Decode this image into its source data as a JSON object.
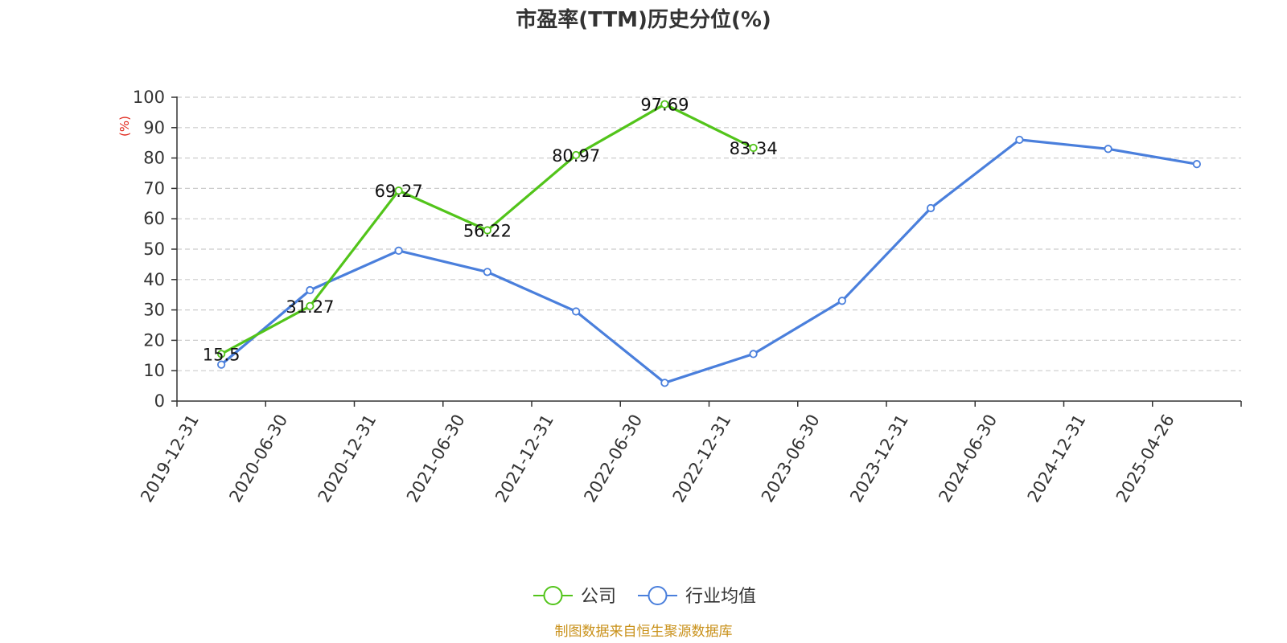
{
  "chart_data": {
    "type": "line",
    "title": "市盈率(TTM)历史分位(%)",
    "ylabel": "(%)",
    "xlabel": "",
    "ylim": [
      0,
      100
    ],
    "yticks": [
      0,
      10,
      20,
      30,
      40,
      50,
      60,
      70,
      80,
      90,
      100
    ],
    "grid": true,
    "legend_position": "bottom-center",
    "categories": [
      "2019-12-31",
      "2020-06-30",
      "2020-12-31",
      "2021-06-30",
      "2021-12-31",
      "2022-06-30",
      "2022-12-31",
      "2023-06-30",
      "2023-12-31",
      "2024-06-30",
      "2024-12-31",
      "2025-04-26"
    ],
    "series": [
      {
        "name": "公司",
        "color": "#52c41a",
        "values": [
          15.5,
          31.27,
          69.27,
          56.22,
          80.97,
          97.69,
          83.34,
          null,
          null,
          null,
          null,
          null
        ],
        "labels": [
          "15.5",
          "31.27",
          "69.27",
          "56.22",
          "80.97",
          "97.69",
          "83.34",
          "",
          "",
          "",
          "",
          ""
        ],
        "show_labels": true
      },
      {
        "name": "行业均值",
        "color": "#4a7fdc",
        "values": [
          12,
          36.5,
          49.5,
          42.5,
          29.5,
          6,
          15.5,
          33,
          63.5,
          86,
          83,
          78
        ],
        "show_labels": false
      }
    ],
    "source": "制图数据来自恒生聚源数据库"
  }
}
